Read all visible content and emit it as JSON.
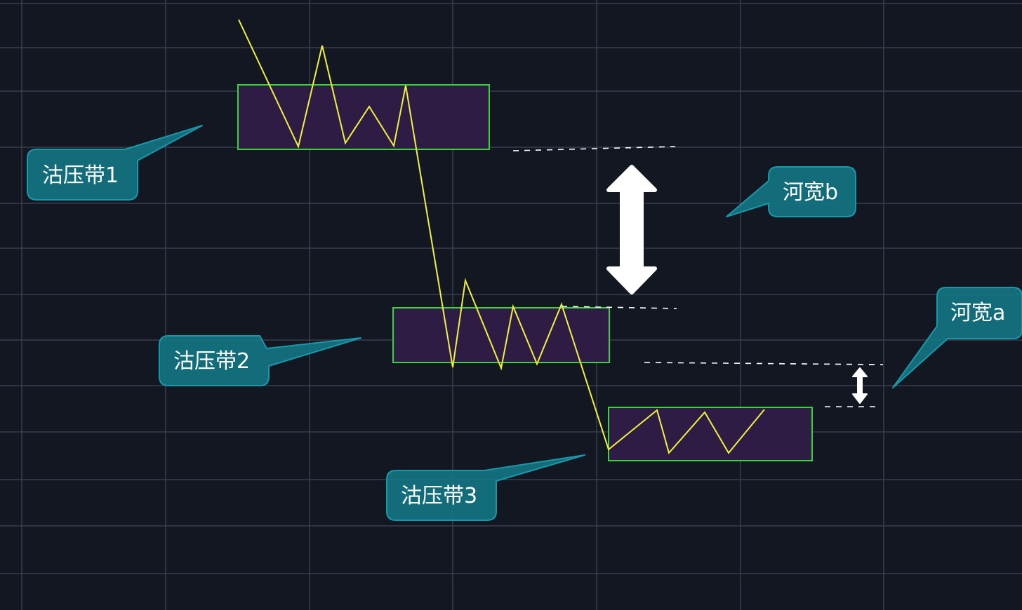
{
  "colors": {
    "background": "#121722",
    "grid": "#3a3f4c",
    "price_line": "#f2f23a",
    "zone_fill": "#2e1c44",
    "zone_stroke": "#39d43a",
    "callout_fill": "#137482",
    "callout_stroke": "#1b98a8",
    "arrow": "#ffffff",
    "dashed_line": "#ffffff"
  },
  "labels": {
    "zone1": "沽压带1",
    "zone2": "沽压带2",
    "zone3": "沽压带3",
    "width_b": "河宽b",
    "width_a": "河宽a"
  },
  "icons": {
    "big_arrow": "double-arrow-vertical-icon",
    "small_arrow": "double-arrow-vertical-icon"
  }
}
